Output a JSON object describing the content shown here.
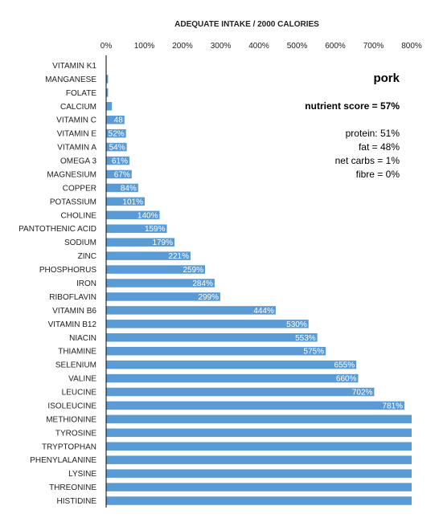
{
  "chart_data": {
    "type": "bar",
    "orientation": "horizontal",
    "title": "ADEQUATE INTAKE / 2000 CALORIES",
    "xlabel": "",
    "ylabel": "",
    "xlim": [
      0,
      800
    ],
    "x_ticks": [
      "0%",
      "100%",
      "200%",
      "300%",
      "400%",
      "500%",
      "600%",
      "700%",
      "800%"
    ],
    "x_tick_values": [
      0,
      100,
      200,
      300,
      400,
      500,
      600,
      700,
      800
    ],
    "grid": false,
    "bar_color": "#5b9bd5",
    "categories": [
      "VITAMIN K1",
      "MANGANESE",
      "FOLATE",
      "CALCIUM",
      "VITAMIN C",
      "VITAMIN E",
      "VITAMIN A",
      "OMEGA 3",
      "MAGNESIUM",
      "COPPER",
      "POTASSIUM",
      "CHOLINE",
      "PANTOTHENIC ACID",
      "SODIUM",
      "ZINC",
      "PHOSPHORUS",
      "IRON",
      "RIBOFLAVIN",
      "VITAMIN B6",
      "VITAMIN B12",
      "NIACIN",
      "THIAMINE",
      "SELENIUM",
      "VALINE",
      "LEUCINE",
      "ISOLEUCINE",
      "METHIONINE",
      "TYROSINE",
      "TRYPTOPHAN",
      "PHENYLALANINE",
      "LYSINE",
      "THREONINE",
      "HISTIDINE"
    ],
    "values": [
      0,
      5,
      5,
      15,
      48,
      52,
      54,
      61,
      67,
      84,
      101,
      140,
      159,
      179,
      221,
      259,
      284,
      299,
      444,
      530,
      553,
      575,
      655,
      660,
      702,
      781,
      800,
      800,
      800,
      800,
      800,
      800,
      800
    ],
    "labels": [
      "",
      "",
      "",
      "",
      "48",
      "52%",
      "54%",
      "61%",
      "67%",
      "84%",
      "101%",
      "140%",
      "159%",
      "179%",
      "221%",
      "259%",
      "284%",
      "299%",
      "444%",
      "530%",
      "553%",
      "575%",
      "655%",
      "660%",
      "702%",
      "781%",
      "",
      "",
      "",
      "",
      "",
      "",
      ""
    ],
    "annotations": {
      "food": "pork",
      "score": "nutrient score = 57%",
      "macros": [
        "protein: 51%",
        "fat = 48%",
        "net carbs = 1%",
        "fibre = 0%"
      ]
    }
  }
}
